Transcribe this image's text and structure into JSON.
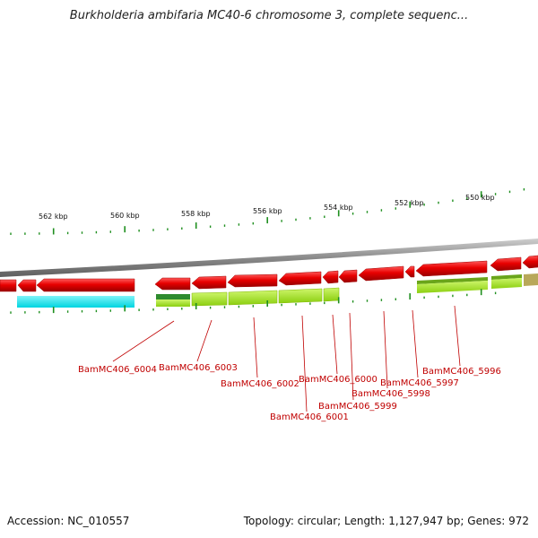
{
  "title": "Burkholderia ambifaria MC40-6 chromosome 3, complete sequenc...",
  "scale_labels": [
    "562 kbp",
    "560 kbp",
    "558 kbp",
    "556 kbp",
    "554 kbp",
    "552 kbp",
    "550 kbp"
  ],
  "gene_labels": [
    "BamMC406_6004",
    "BamMC406_6003",
    "BamMC406_6002",
    "BamMC406_6001",
    "BamMC406_6000",
    "BamMC406_5999",
    "BamMC406_5998",
    "BamMC406_5997",
    "BamMC406_5996"
  ],
  "footer": {
    "accession_label": "Accession:",
    "accession": "NC_010557",
    "topology_label": "Topology:",
    "topology": "circular;",
    "length_label": "Length:",
    "length": "1,127,947 bp;",
    "genes_label": "Genes:",
    "genes": "972"
  },
  "colors": {
    "gene_red": "#e80000",
    "cds_green": "#a6e61a",
    "dark_green": "#2e8b2e",
    "cyan": "#00e5ee",
    "tan": "#b8a85a",
    "backbone": "#8a8a8a",
    "tick_green": "#1f8f1f",
    "label_red": "#c00000"
  }
}
